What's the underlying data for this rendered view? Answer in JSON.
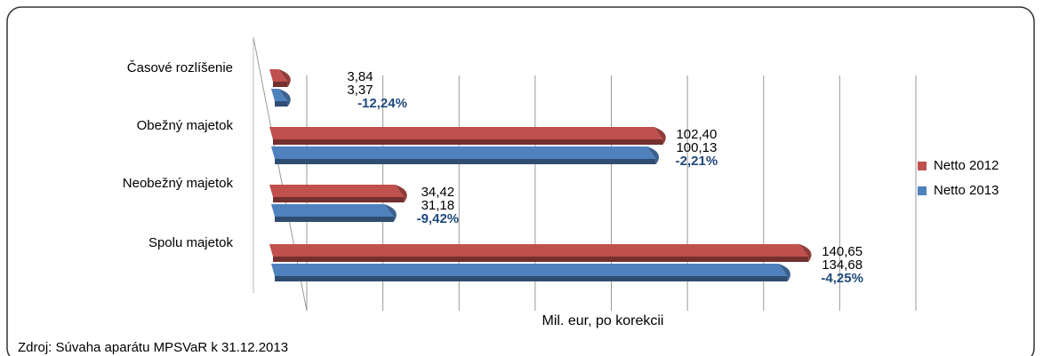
{
  "chart_data": {
    "type": "bar3d_horizontal",
    "categories": [
      "Časové rozlíšenie",
      "Obežný majetok",
      "Neobežný majetok",
      "Spolu majetok"
    ],
    "series": [
      {
        "name": "Netto 2012",
        "color": "#c0504d",
        "values": [
          3.84,
          102.4,
          34.42,
          140.65
        ],
        "value_labels": [
          "3,84",
          "102,40",
          "34,42",
          "140,65"
        ]
      },
      {
        "name": "Netto 2013",
        "color": "#4f81bd",
        "values": [
          3.37,
          100.13,
          31.18,
          134.68
        ],
        "value_labels": [
          "3,37",
          "100,13",
          "31,18",
          "134,68"
        ]
      }
    ],
    "annotations": [
      "-12,24%",
      "-2,21%",
      "-9,42%",
      "-4,25%"
    ],
    "xlabel": "Mil. eur, po korekcii",
    "xlim": [
      0,
      160
    ],
    "xticks": [
      0,
      20,
      40,
      60,
      80,
      100,
      120,
      140,
      160
    ],
    "grid": true,
    "legend": "right",
    "source": "Zdroj: Súvaha aparátu MPSVaR k 31.12.2013"
  }
}
